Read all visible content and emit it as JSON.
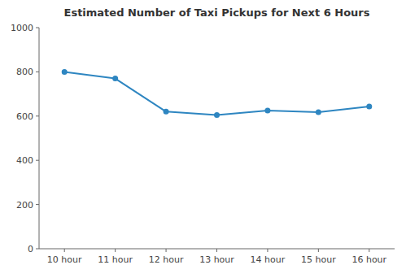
{
  "chart_data": {
    "type": "line",
    "title": "Estimated Number of Taxi Pickups for Next 6 Hours",
    "categories": [
      "10 hour",
      "11 hour",
      "12 hour",
      "13 hour",
      "14 hour",
      "15 hour",
      "16 hour"
    ],
    "values": [
      800,
      770,
      620,
      605,
      625,
      618,
      643
    ],
    "color": "#2e86c1",
    "marker": "circle",
    "ylim": [
      0,
      1000
    ],
    "yticks": [
      0,
      200,
      400,
      600,
      800,
      1000
    ],
    "grid": false
  }
}
